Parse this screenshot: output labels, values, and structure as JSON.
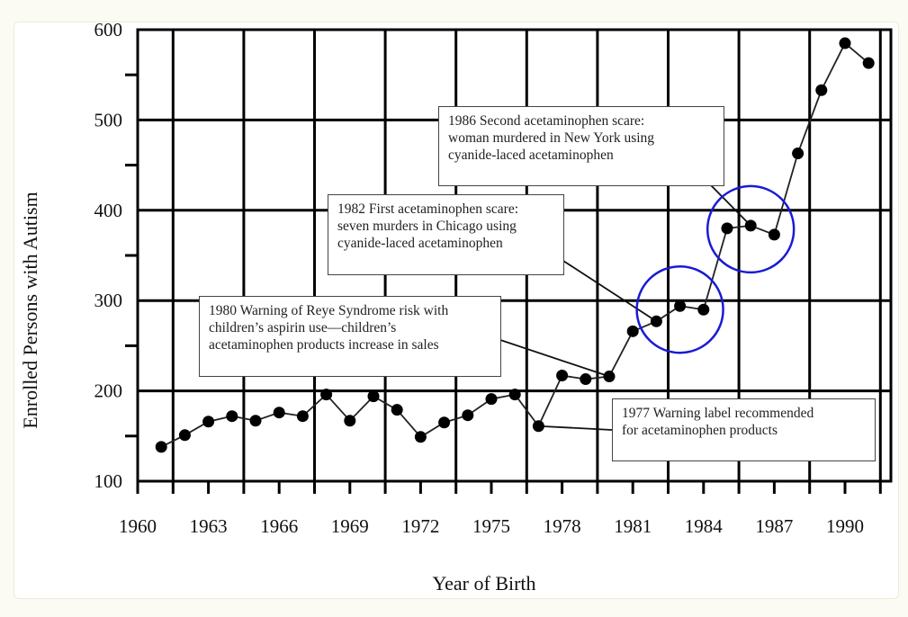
{
  "chart_data": {
    "type": "line",
    "title": "",
    "xlabel": "Year of Birth",
    "ylabel": "Enrolled Persons with Autism",
    "xlim": [
      1960,
      1992
    ],
    "ylim": [
      100,
      600
    ],
    "x_ticks": [
      "1960",
      "1963",
      "1966",
      "1969",
      "1972",
      "1975",
      "1978",
      "1981",
      "1984",
      "1987",
      "1990"
    ],
    "y_ticks": [
      "100",
      "200",
      "300",
      "400",
      "500",
      "600"
    ],
    "grid": true,
    "series": [
      {
        "name": "Enrolled persons",
        "x": [
          1961,
          1962,
          1963,
          1964,
          1965,
          1966,
          1967,
          1968,
          1969,
          1970,
          1971,
          1972,
          1973,
          1974,
          1975,
          1976,
          1977,
          1978,
          1979,
          1980,
          1981,
          1982,
          1983,
          1984,
          1985,
          1986,
          1987,
          1988,
          1989,
          1990,
          1991
        ],
        "y": [
          138,
          151,
          166,
          172,
          167,
          176,
          172,
          196,
          167,
          194,
          179,
          149,
          165,
          173,
          191,
          196,
          161,
          217,
          213,
          216,
          266,
          277,
          294,
          290,
          380,
          383,
          373,
          463,
          533,
          585,
          563
        ]
      }
    ],
    "highlight_years": [
      1983,
      1986
    ],
    "highlight_color": "#1a1ad6",
    "annotations": [
      {
        "lines": [
          "1986 Second acetaminophen scare:",
          "woman murdered in New York using",
          "cyanide-laced acetaminophen"
        ],
        "target_year": 1986
      },
      {
        "lines": [
          "1982 First acetaminophen scare:",
          "seven murders in Chicago using",
          "cyanide-laced acetaminophen"
        ],
        "target_year": 1982
      },
      {
        "lines": [
          "1980 Warning of Reye Syndrome risk with",
          "children’s aspirin use—children’s",
          "acetaminophen products increase in sales"
        ],
        "target_year": 1980
      },
      {
        "lines": [
          "1977 Warning label recommended",
          "for acetaminophen products"
        ],
        "target_year": 1977
      }
    ]
  }
}
